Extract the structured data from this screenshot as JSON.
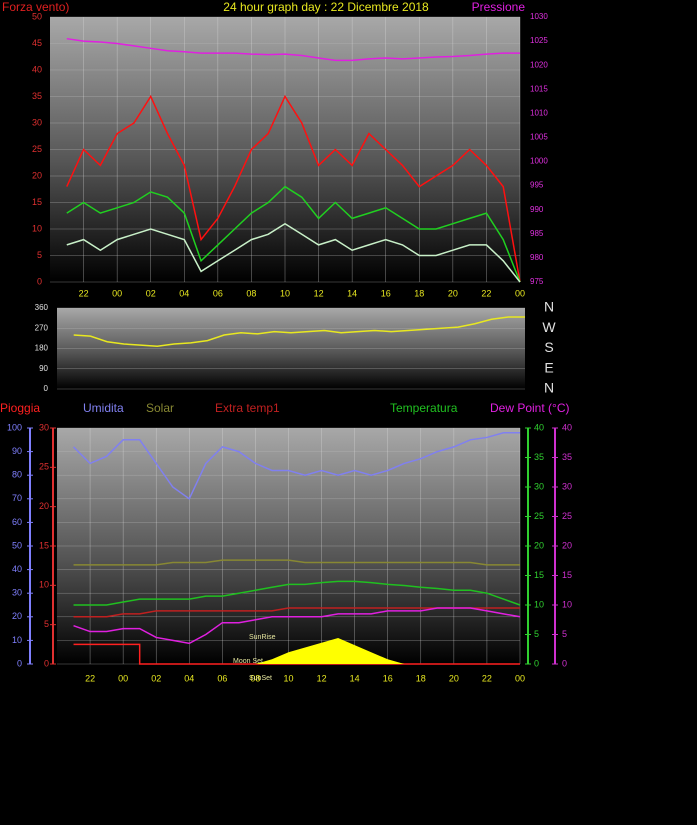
{
  "chart_data": [
    {
      "type": "line",
      "title": "24 hour graph day : 22 Dicembre 2018",
      "y_label": "Forza vento)",
      "y2_label": "Pressione",
      "x": [
        21,
        22,
        23,
        24,
        25,
        26,
        27,
        28,
        29,
        30,
        31,
        32,
        33,
        34,
        35,
        36,
        37,
        38,
        39,
        40,
        41,
        42,
        43,
        44,
        45,
        46,
        47,
        48
      ],
      "xlim": [
        20,
        48
      ],
      "xticks": [
        22,
        {
          "value": 24,
          "label": "00"
        },
        {
          "value": 26,
          "label": "02"
        },
        {
          "value": 28,
          "label": "04"
        },
        {
          "value": 30,
          "label": "06"
        },
        {
          "value": 32,
          "label": "08"
        },
        {
          "value": 34,
          "label": "10"
        },
        {
          "value": 36,
          "label": "12"
        },
        {
          "value": 38,
          "label": "14"
        },
        {
          "value": 40,
          "label": "16"
        },
        {
          "value": 42,
          "label": "18"
        },
        {
          "value": 44,
          "label": "20"
        },
        {
          "value": 46,
          "label": "22"
        },
        {
          "value": 48,
          "label": "00"
        }
      ],
      "ylim": [
        0,
        50
      ],
      "yticks": [
        0,
        5,
        10,
        15,
        20,
        25,
        30,
        35,
        40,
        45,
        50
      ],
      "y2lim": [
        975,
        1030
      ],
      "y2ticks": [
        975,
        980,
        985,
        990,
        995,
        1000,
        1005,
        1010,
        1015,
        1020,
        1025,
        1030
      ],
      "grid": true,
      "series": [
        {
          "color": "#ff1010",
          "axis": "y",
          "values": [
            18,
            25,
            22,
            28,
            30,
            35,
            28,
            22,
            8,
            12,
            18,
            25,
            28,
            35,
            30,
            22,
            25,
            22,
            28,
            25,
            22,
            18,
            20,
            22,
            25,
            22,
            18,
            0
          ]
        },
        {
          "color": "#20d020",
          "axis": "y",
          "values": [
            13,
            15,
            13,
            14,
            15,
            17,
            16,
            13,
            4,
            7,
            10,
            13,
            15,
            18,
            16,
            12,
            15,
            12,
            13,
            14,
            12,
            10,
            10,
            11,
            12,
            13,
            8,
            0
          ]
        },
        {
          "color": "#c8f0c8",
          "axis": "y",
          "values": [
            7,
            8,
            6,
            8,
            9,
            10,
            9,
            8,
            2,
            4,
            6,
            8,
            9,
            11,
            9,
            7,
            8,
            6,
            7,
            8,
            7,
            5,
            5,
            6,
            7,
            7,
            4,
            0
          ]
        },
        {
          "color": "#e020e0",
          "axis": "y2",
          "values": [
            1025.5,
            1025,
            1024.8,
            1024.5,
            1024,
            1023.5,
            1023,
            1022.8,
            1022.5,
            1022.5,
            1022.5,
            1022.3,
            1022.2,
            1022.3,
            1022,
            1021.5,
            1021,
            1021,
            1021.3,
            1021.5,
            1021.3,
            1021.5,
            1021.7,
            1021.8,
            1022,
            1022.3,
            1022.5,
            1022.5
          ]
        }
      ]
    },
    {
      "type": "line",
      "x": [
        21,
        22,
        23,
        24,
        25,
        26,
        27,
        28,
        29,
        30,
        31,
        32,
        33,
        34,
        35,
        36,
        37,
        38,
        39,
        40,
        41,
        42,
        43,
        44,
        45,
        46,
        47,
        48
      ],
      "xlim": [
        20,
        48
      ],
      "ylim": [
        0,
        360
      ],
      "yticks": [
        0,
        90,
        180,
        270,
        360
      ],
      "y2lim": [
        0,
        360
      ],
      "y2ticks": [
        {
          "value": 360,
          "label": "N"
        },
        {
          "value": 270,
          "label": "W"
        },
        {
          "value": 180,
          "label": "S"
        },
        {
          "value": 90,
          "label": "E"
        },
        {
          "value": 0,
          "label": "N"
        }
      ],
      "grid": true,
      "series": [
        {
          "color": "#e8e820",
          "axis": "y",
          "values": [
            240,
            235,
            210,
            200,
            195,
            190,
            200,
            205,
            215,
            240,
            250,
            245,
            255,
            250,
            255,
            260,
            250,
            255,
            260,
            255,
            260,
            265,
            270,
            275,
            290,
            310,
            320,
            320
          ]
        }
      ]
    },
    {
      "type": "line",
      "x": [
        21,
        22,
        23,
        24,
        25,
        26,
        27,
        28,
        29,
        30,
        31,
        32,
        33,
        34,
        35,
        36,
        37,
        38,
        39,
        40,
        41,
        42,
        43,
        44,
        45,
        46,
        47,
        48
      ],
      "xlim": [
        20,
        48
      ],
      "xticks": [
        22,
        {
          "value": 24,
          "label": "00"
        },
        {
          "value": 26,
          "label": "02"
        },
        {
          "value": 28,
          "label": "04"
        },
        {
          "value": 30,
          "label": "06"
        },
        {
          "value": 32,
          "label": "08"
        },
        {
          "value": 34,
          "label": "10"
        },
        {
          "value": 36,
          "label": "12"
        },
        {
          "value": 38,
          "label": "14"
        },
        {
          "value": 40,
          "label": "16"
        },
        {
          "value": 42,
          "label": "18"
        },
        {
          "value": 44,
          "label": "20"
        },
        {
          "value": 46,
          "label": "22"
        },
        {
          "value": 48,
          "label": "00"
        }
      ],
      "ylim": [
        0,
        100
      ],
      "yticks": [
        0,
        10,
        20,
        30,
        40,
        50,
        60,
        70,
        80,
        90,
        100
      ],
      "y2lim": [
        0,
        30
      ],
      "y2ticks": [
        0,
        5,
        10,
        15,
        20,
        25,
        30
      ],
      "y3lim": [
        0,
        40
      ],
      "y3ticks": [
        0,
        5,
        10,
        15,
        20,
        25,
        30,
        35,
        40
      ],
      "y4lim": [
        0,
        40
      ],
      "y4ticks": [
        0,
        5,
        10,
        15,
        20,
        25,
        30,
        35,
        40
      ],
      "grid": true,
      "annotations": [
        "SunRise",
        "Moon Set",
        "SunSet"
      ],
      "series": [
        {
          "name": "Pioggia",
          "color": "#ff2020",
          "axis": "y2",
          "step": true,
          "values": [
            2.5,
            2.5,
            2.5,
            2.5,
            0,
            0,
            0,
            0,
            0,
            0,
            0,
            0,
            0,
            0,
            0,
            0,
            0,
            0,
            0,
            0,
            0,
            0,
            0,
            0,
            0,
            0,
            0,
            0
          ]
        },
        {
          "name": "Umidita",
          "color": "#8080f0",
          "axis": "y",
          "values": [
            92,
            85,
            88,
            95,
            95,
            85,
            75,
            70,
            85,
            92,
            90,
            85,
            82,
            82,
            80,
            82,
            80,
            82,
            80,
            82,
            85,
            87,
            90,
            92,
            95,
            96,
            98,
            98
          ]
        },
        {
          "name": "Solar",
          "color": "#888833",
          "axis": "y",
          "values": [
            42,
            42,
            42,
            42,
            42,
            42,
            43,
            43,
            43,
            44,
            44,
            44,
            44,
            44,
            43,
            43,
            43,
            43,
            43,
            43,
            43,
            43,
            43,
            43,
            43,
            42,
            42,
            42
          ]
        },
        {
          "name": "Extra temp1",
          "color": "#c02020",
          "axis": "y3",
          "values": [
            8,
            8,
            8,
            8.5,
            8.5,
            9,
            9,
            9,
            9,
            9,
            9,
            9,
            9,
            9.5,
            9.5,
            9.5,
            9.5,
            9.5,
            9.5,
            9.5,
            9.5,
            9.5,
            9.5,
            9.5,
            9.5,
            9.5,
            9.5,
            9.5
          ]
        },
        {
          "name": "Temperatura",
          "color": "#20c020",
          "axis": "y3",
          "values": [
            10,
            10,
            10,
            10.5,
            11,
            11,
            11,
            11,
            11.5,
            11.5,
            12,
            12.5,
            13,
            13.5,
            13.5,
            13.8,
            14,
            14,
            13.8,
            13.5,
            13.3,
            13,
            12.8,
            12.5,
            12.5,
            12,
            11,
            10
          ]
        },
        {
          "name": "Dew Point (°C)",
          "color": "#e020e0",
          "axis": "y4",
          "values": [
            6.5,
            5.5,
            5.5,
            6,
            6,
            4.5,
            4,
            3.5,
            5,
            7,
            7,
            7.5,
            8,
            8,
            8,
            8,
            8.5,
            8.5,
            8.5,
            9,
            9,
            9,
            9.5,
            9.5,
            9.5,
            9,
            8.5,
            8
          ]
        },
        {
          "color": "#ffff00",
          "axis": "y",
          "fill": true,
          "values": [
            0,
            0,
            0,
            0,
            0,
            0,
            0,
            0,
            0,
            0,
            0,
            0,
            2,
            5,
            7,
            9,
            11,
            8,
            5,
            2,
            0,
            0,
            0,
            0,
            0,
            0,
            0,
            0
          ]
        }
      ]
    }
  ]
}
